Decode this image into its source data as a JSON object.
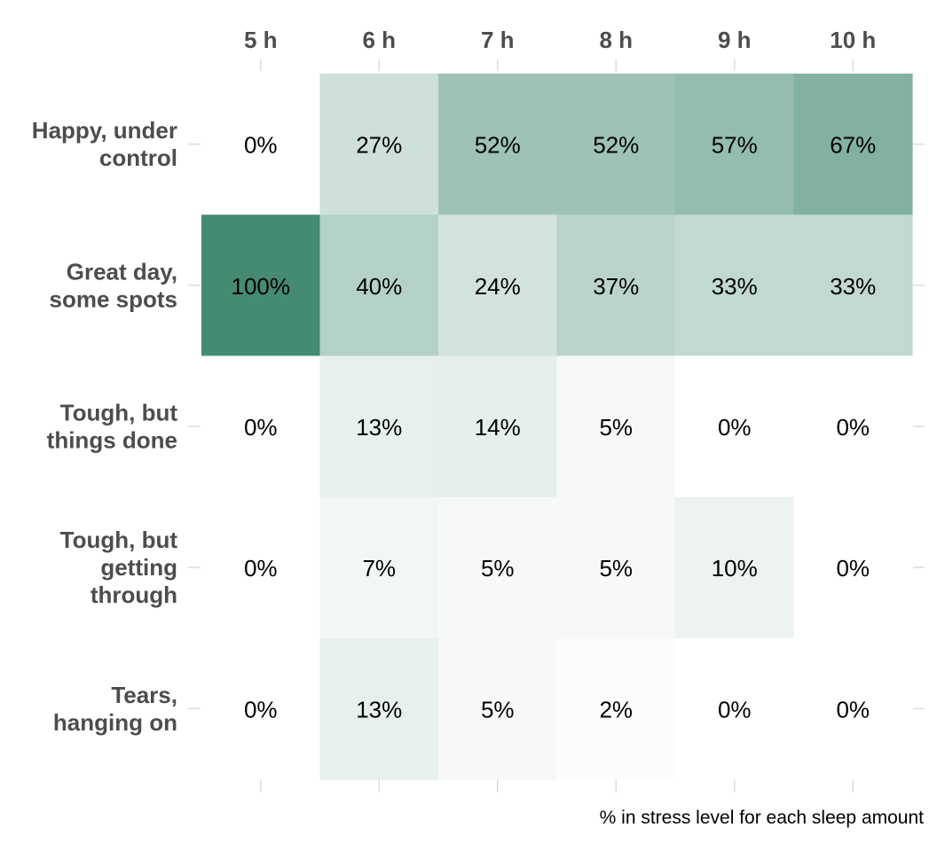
{
  "chart_data": {
    "type": "heatmap",
    "x": [
      "5 h",
      "6 h",
      "7 h",
      "8 h",
      "9 h",
      "10 h"
    ],
    "y": [
      [
        "Happy, under",
        "control"
      ],
      [
        "Great day,",
        "some spots"
      ],
      [
        "Tough, but",
        "things done"
      ],
      [
        "Tough, but",
        "getting",
        "through"
      ],
      [
        "Tears,",
        "hanging on"
      ]
    ],
    "values": [
      [
        0,
        27,
        52,
        52,
        57,
        67
      ],
      [
        100,
        40,
        24,
        37,
        33,
        33
      ],
      [
        0,
        13,
        14,
        5,
        0,
        0
      ],
      [
        0,
        7,
        5,
        5,
        10,
        0
      ],
      [
        0,
        13,
        5,
        2,
        0,
        0
      ]
    ],
    "value_suffix": "%",
    "value_range": [
      0,
      100
    ],
    "caption": "% in stress level for each sleep amount",
    "colors": {
      "low": "#ffffff",
      "high": "#448b71"
    },
    "grid": false,
    "legend": "none"
  }
}
